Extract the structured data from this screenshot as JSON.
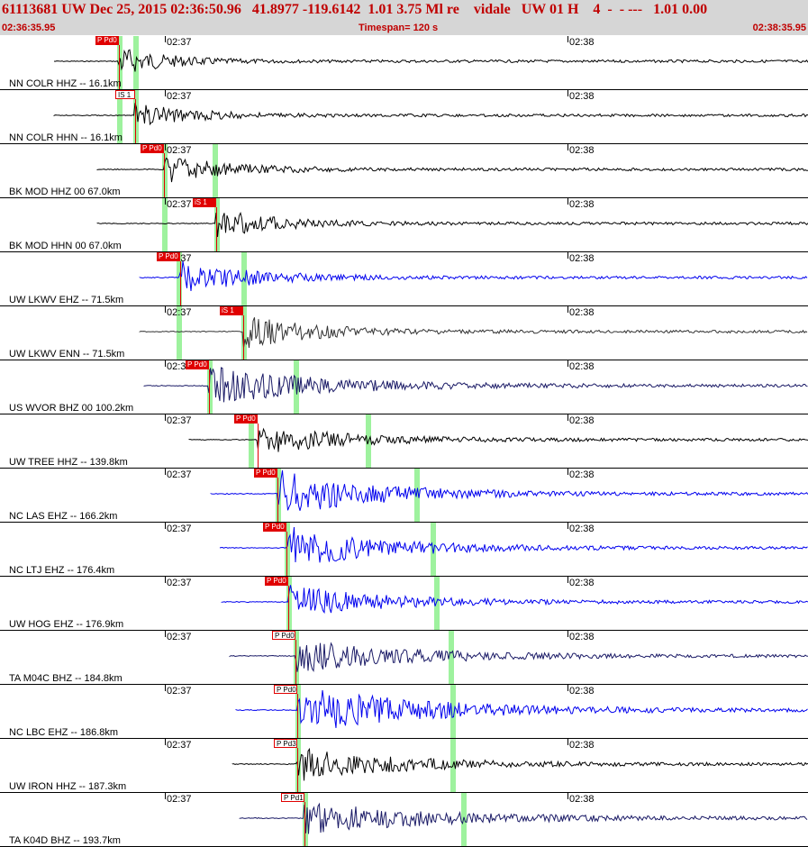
{
  "header": {
    "title": "61113681 UW Dec 25, 2015 02:36:50.96   41.8977 -119.6142  1.01 3.75 Ml re    vidale   UW 01 H    4  -  - ---   1.01 0.00",
    "time_start": "02:36:35.95",
    "timespan": "Timespan= 120 s",
    "time_end": "02:38:35.95"
  },
  "time_labels": [
    "02:37",
    "02:38"
  ],
  "colors": {
    "black": "#000000",
    "blue": "#0000ee",
    "navy": "#1a1a66",
    "dark": "#333333",
    "pick_red": "#e00000",
    "green_marker": "#9ef29e"
  },
  "panels": [
    {
      "label": "NN COLR HHZ -- 16.1km",
      "pick": "P Pd0",
      "pick_style": "filled",
      "color": "black",
      "amp": 0.6,
      "decay": 0.9
    },
    {
      "label": "NN COLR HHN -- 16.1km",
      "pick": "IS 1",
      "pick_style": "outline",
      "color": "black",
      "amp": 0.5,
      "decay": 0.7
    },
    {
      "label": "BK MOD HHZ 00 67.0km",
      "pick": "P Pd0",
      "pick_style": "filled",
      "color": "black",
      "amp": 0.6,
      "decay": 0.6
    },
    {
      "label": "BK MOD HHN 00 67.0km",
      "pick": "iS 1",
      "pick_style": "filled",
      "color": "black",
      "amp": 0.6,
      "decay": 0.6
    },
    {
      "label": "UW LKWV EHZ -- 71.5km",
      "pick": "P Pd0",
      "pick_style": "filled",
      "color": "blue",
      "amp": 0.7,
      "decay": 0.5
    },
    {
      "label": "UW LKWV ENN -- 71.5km",
      "pick": "iS 1",
      "pick_style": "filled",
      "color": "dark",
      "amp": 0.7,
      "decay": 0.5
    },
    {
      "label": "US WVOR BHZ 00 100.2km",
      "pick": "P Pd0",
      "pick_style": "filled",
      "color": "navy",
      "amp": 0.8,
      "decay": 0.2
    },
    {
      "label": "UW TREE HHZ -- 139.8km",
      "pick": "P Pd0",
      "pick_style": "filled",
      "color": "black",
      "amp": 0.6,
      "decay": 0.35
    },
    {
      "label": "NC LAS EHZ -- 166.2km",
      "pick": "P Pd0",
      "pick_style": "filled",
      "color": "blue",
      "amp": 1.0,
      "decay": 0.3
    },
    {
      "label": "NC LTJ EHZ -- 176.4km",
      "pick": "P Pd0",
      "pick_style": "filled",
      "color": "blue",
      "amp": 0.9,
      "decay": 0.3
    },
    {
      "label": "UW HOG EHZ -- 176.9km",
      "pick": "P Pd0",
      "pick_style": "filled",
      "color": "blue",
      "amp": 0.7,
      "decay": 0.3
    },
    {
      "label": "TA M04C BHZ -- 184.8km",
      "pick": "P Pd0",
      "pick_style": "outline",
      "color": "navy",
      "amp": 0.7,
      "decay": 0.2
    },
    {
      "label": "NC LBC EHZ -- 186.8km",
      "pick": "P Pd0",
      "pick_style": "outline",
      "color": "blue",
      "amp": 1.0,
      "decay": 0.15
    },
    {
      "label": "UW IRON HHZ -- 187.3km",
      "pick": "P Pd3",
      "pick_style": "outline",
      "color": "black",
      "amp": 0.7,
      "decay": 0.25
    },
    {
      "label": "TA K04D BHZ -- 193.7km",
      "pick": "P Pd1",
      "pick_style": "outline",
      "color": "navy",
      "amp": 0.7,
      "decay": 0.15
    }
  ]
}
